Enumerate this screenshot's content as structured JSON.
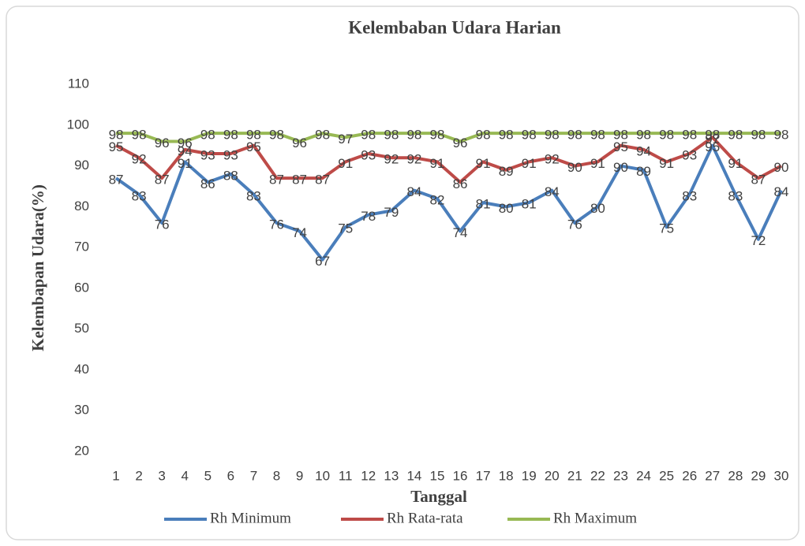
{
  "chart_data": {
    "type": "line",
    "title": "Kelembaban Udara Harian",
    "x_label": "Tanggal",
    "y_label": "Kelembapan Udara(%)",
    "categories": [
      "1",
      "2",
      "3",
      "4",
      "5",
      "6",
      "7",
      "8",
      "9",
      "10",
      "11",
      "12",
      "13",
      "14",
      "15",
      "16",
      "17",
      "18",
      "19",
      "20",
      "21",
      "22",
      "23",
      "24",
      "25",
      "26",
      "27",
      "28",
      "29",
      "30"
    ],
    "series": [
      {
        "name": "Rh Minimum",
        "color": "#4a7ebb",
        "values": [
          87,
          83,
          76,
          91,
          86,
          88,
          83,
          76,
          74,
          67,
          75,
          78,
          79,
          84,
          82,
          74,
          81,
          80,
          81,
          84,
          76,
          80,
          90,
          89,
          75,
          83,
          95,
          83,
          72,
          84
        ]
      },
      {
        "name": "Rh Rata-rata",
        "color": "#be4b48",
        "values": [
          95,
          92,
          87,
          94,
          93,
          93,
          95,
          87,
          87,
          87,
          91,
          93,
          92,
          92,
          91,
          86,
          91,
          89,
          91,
          92,
          90,
          91,
          95,
          94,
          91,
          93,
          97,
          91,
          87,
          90
        ]
      },
      {
        "name": "Rh Maximum",
        "color": "#98b954",
        "values": [
          98,
          98,
          96,
          96,
          98,
          98,
          98,
          98,
          96,
          98,
          97,
          98,
          98,
          98,
          98,
          96,
          98,
          98,
          98,
          98,
          98,
          98,
          98,
          98,
          98,
          98,
          98,
          98,
          98,
          98
        ]
      }
    ],
    "ylim": [
      20,
      110
    ],
    "yticks": [
      20,
      30,
      40,
      50,
      60,
      70,
      80,
      90,
      100,
      110
    ],
    "data_labels": true,
    "legend": "bottom"
  }
}
